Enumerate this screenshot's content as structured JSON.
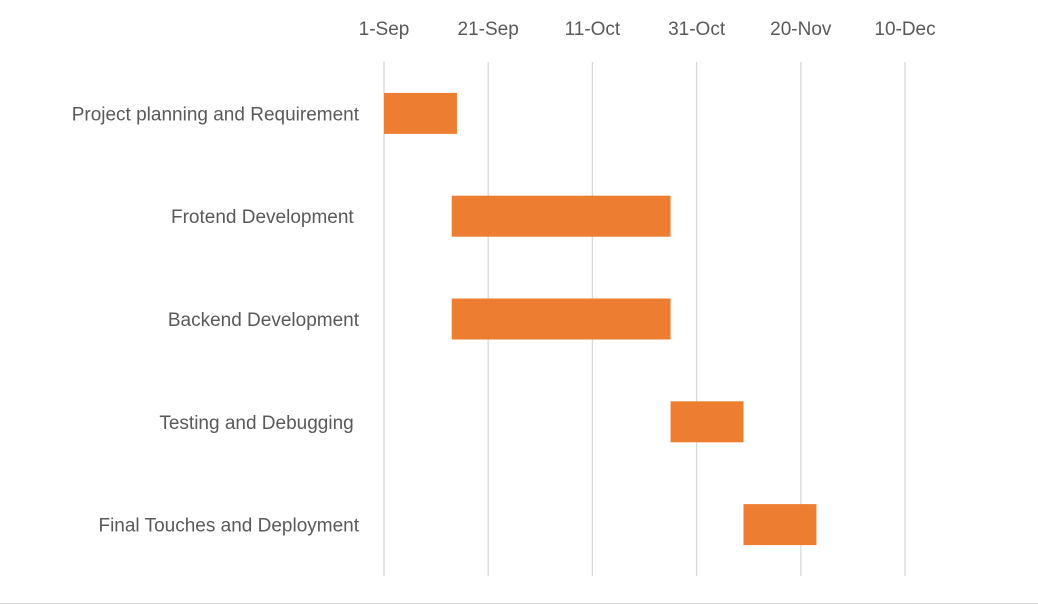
{
  "chart_data": {
    "type": "bar",
    "orientation": "horizontal",
    "subtype": "gantt",
    "title": "",
    "xlabel": "",
    "ylabel": "",
    "x_axis_position": "top",
    "x_ticks": [
      "1-Sep",
      "21-Sep",
      "11-Oct",
      "31-Oct",
      "20-Nov",
      "10-Dec"
    ],
    "xlim": [
      "2023-09-01",
      "2023-12-10"
    ],
    "grid": true,
    "legend": "none",
    "bar_color": "#ED7D31",
    "grid_color": "#D9D9D9",
    "label_color": "#595959",
    "tasks": [
      {
        "name": "Project planning and Requirement",
        "start": "2023-09-01",
        "end": "2023-09-15"
      },
      {
        "name": "Frotend Development ",
        "start": "2023-09-14",
        "end": "2023-10-26"
      },
      {
        "name": "Backend Development",
        "start": "2023-09-14",
        "end": "2023-10-26"
      },
      {
        "name": "Testing and Debugging ",
        "start": "2023-10-26",
        "end": "2023-11-09"
      },
      {
        "name": "Final Touches and Deployment",
        "start": "2023-11-09",
        "end": "2023-11-23"
      }
    ]
  }
}
